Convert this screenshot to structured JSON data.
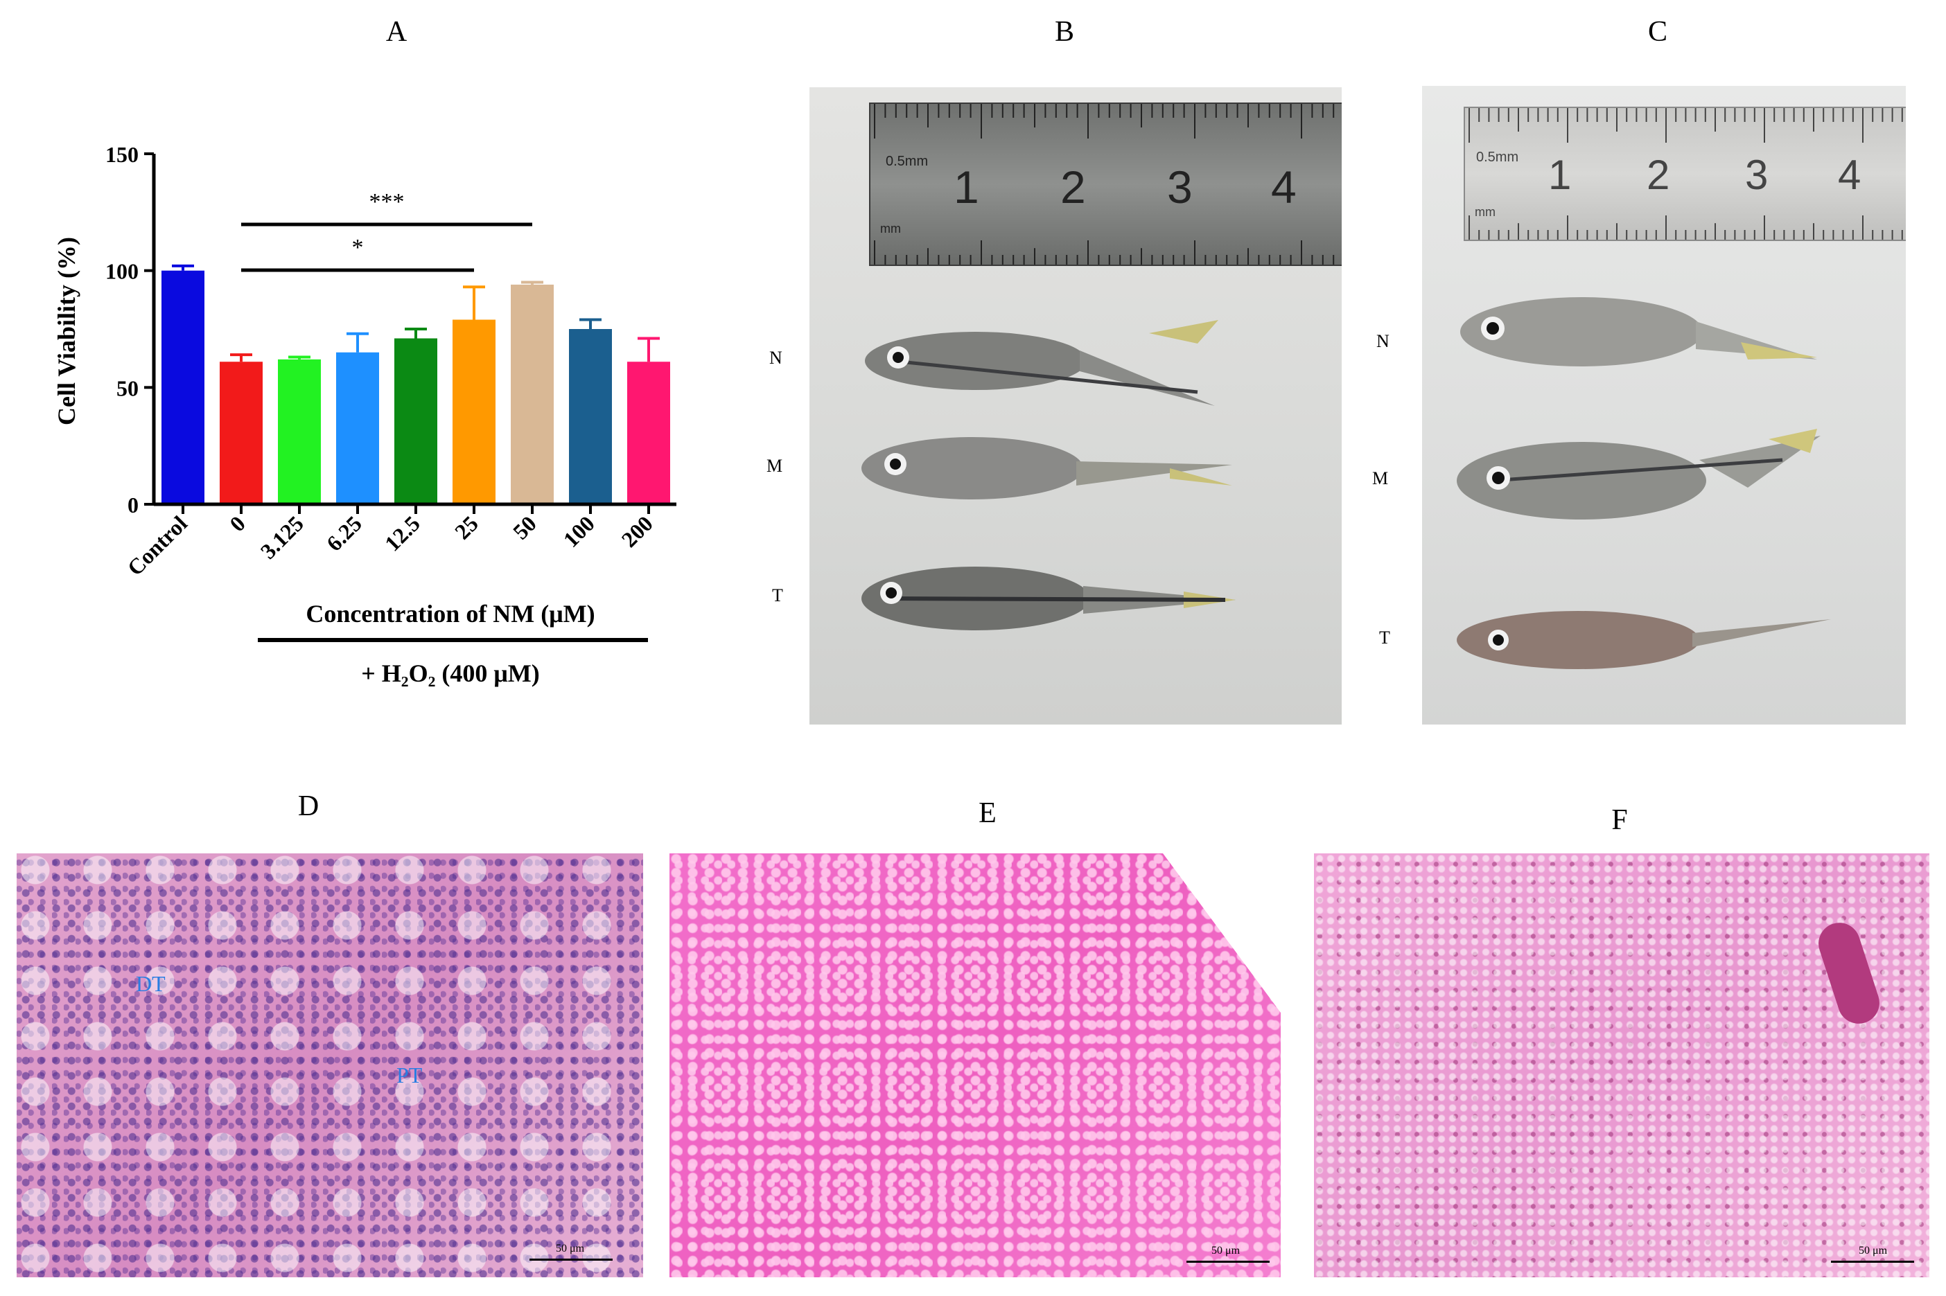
{
  "panels": {
    "A": "A",
    "B": "B",
    "C": "C",
    "D": "D",
    "E": "E",
    "F": "F"
  },
  "chart_data": {
    "type": "bar",
    "ylabel": "Cell Viability (%)",
    "xlabel": "Concentration of NM  (μM)",
    "treatment_label": "+ H₂O₂ (400 μM)",
    "ylim": [
      0,
      150
    ],
    "yticks": [
      0,
      50,
      100,
      150
    ],
    "categories": [
      "Control",
      "0",
      "3.125",
      "6.25",
      "12.5",
      "25",
      "50",
      "100",
      "200"
    ],
    "values": [
      100,
      61,
      62,
      65,
      71,
      79,
      94,
      75,
      61
    ],
    "errors": [
      2,
      3,
      1,
      8,
      4,
      14,
      1,
      4,
      10
    ],
    "colors": [
      "#0a0adf",
      "#f21a1a",
      "#22f222",
      "#1e90ff",
      "#0b8a14",
      "#ff9900",
      "#d9b895",
      "#1b5f8f",
      "#ff1770"
    ],
    "significance": [
      {
        "label": "***",
        "from": "0",
        "to": "50"
      },
      {
        "label": "*",
        "from": "0",
        "to": "25"
      }
    ]
  },
  "photo_B": {
    "labels": [
      "N",
      "M",
      "T"
    ],
    "ruler_numbers": [
      "0.5mm",
      "1",
      "2",
      "3",
      "4"
    ],
    "ruler_unit": "mm"
  },
  "photo_C": {
    "labels": [
      "N",
      "M",
      "T"
    ],
    "ruler_numbers": [
      "0.5mm",
      "1",
      "2",
      "3",
      "4"
    ],
    "ruler_unit": "mm"
  },
  "histology_D": {
    "tags": [
      "DT",
      "PT"
    ],
    "scale": "50 μm"
  },
  "histology_E": {
    "scale": "50 μm"
  },
  "histology_F": {
    "scale": "50 μm"
  }
}
